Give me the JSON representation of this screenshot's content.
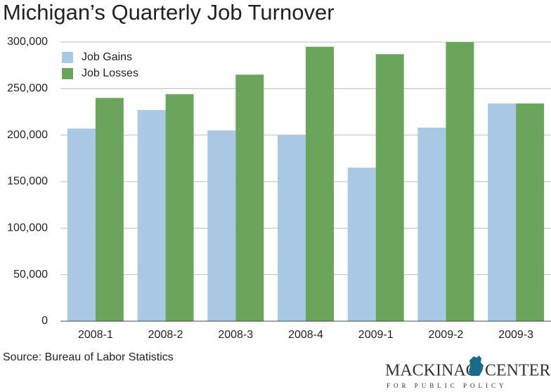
{
  "chart_data": {
    "type": "bar",
    "title": "Michigan’s Quarterly Job Turnover",
    "categories": [
      "2008-1",
      "2008-2",
      "2008-3",
      "2008-4",
      "2009-1",
      "2009-2",
      "2009-3"
    ],
    "series": [
      {
        "name": "Job Gains",
        "color": "#a9c8e4",
        "values": [
          207000,
          227000,
          205000,
          200000,
          165000,
          208000,
          234000
        ]
      },
      {
        "name": "Job Losses",
        "color": "#6aa55b",
        "values": [
          240000,
          244000,
          265000,
          295000,
          287000,
          300000,
          234000
        ]
      }
    ],
    "ylim": [
      0,
      300000
    ],
    "yticks": [
      0,
      {
        "value": 50000,
        "label": "50,000"
      },
      {
        "value": 100000,
        "label": "100,000"
      },
      {
        "value": 150000,
        "label": "150,000"
      },
      {
        "value": 200000,
        "label": "200,000"
      },
      {
        "value": 250000,
        "label": "250,000"
      },
      {
        "value": 300000,
        "label": "300,000"
      }
    ],
    "grid": true,
    "legend": "top-left",
    "source": "Source: Bureau of Labor Statistics"
  },
  "logo": {
    "left": "MACKINAC",
    "right": "CENTER",
    "tagline": "FOR PUBLIC POLICY"
  }
}
